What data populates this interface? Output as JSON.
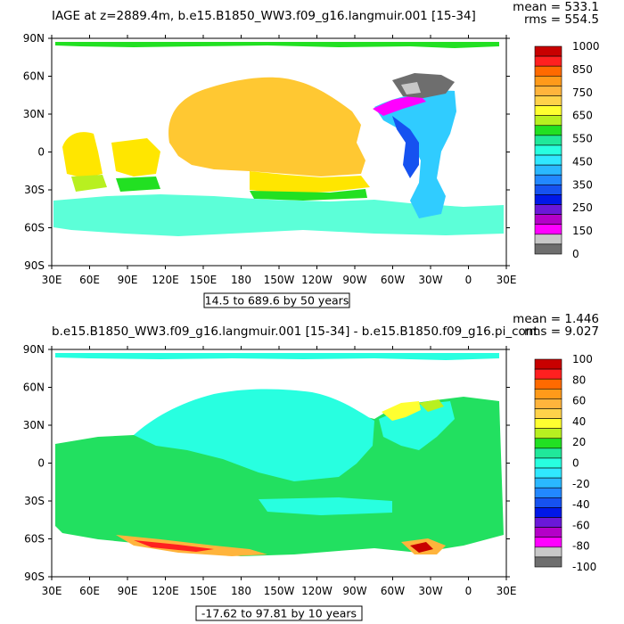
{
  "chart_data": [
    {
      "type": "heatmap",
      "title": "IAGE at z=2889.4m, b.e15.B1850_WW3.f09_g16.langmuir.001 [15-34]",
      "stats": {
        "mean": "mean = 533.1",
        "rms": "rms = 554.5"
      },
      "footer": "14.5 to 689.6 by 50 years",
      "x_ticks": [
        "30E",
        "60E",
        "90E",
        "120E",
        "150E",
        "180",
        "150W",
        "120W",
        "90W",
        "60W",
        "30W",
        "0",
        "30E"
      ],
      "y_ticks": [
        "90N",
        "60N",
        "30N",
        "0",
        "30S",
        "60S",
        "90S"
      ],
      "colorbar": {
        "labels": [
          "1000",
          "850",
          "750",
          "650",
          "550",
          "450",
          "350",
          "250",
          "150",
          "0"
        ],
        "colors": [
          "#c80000",
          "#ff2020",
          "#ff6a00",
          "#ff9a1a",
          "#ffb43c",
          "#ffd24a",
          "#ffff30",
          "#b8f020",
          "#22e022",
          "#20e89a",
          "#28ffe0",
          "#30e8ff",
          "#2ab8ff",
          "#2288ff",
          "#1652f0",
          "#0018e8",
          "#6a18d8",
          "#b400c8",
          "#ff00ff",
          "#c8c8c8",
          "#6e6e6e"
        ]
      },
      "regions": [
        {
          "name": "pacific",
          "color": "#ffc832"
        },
        {
          "name": "indian",
          "color": "#ffe600"
        },
        {
          "name": "southern",
          "color": "#5cffd8"
        },
        {
          "name": "atlantic",
          "color": "#30ccff"
        },
        {
          "name": "arctic",
          "color": "#22e022"
        }
      ]
    },
    {
      "type": "heatmap",
      "title": "b.e15.B1850_WW3.f09_g16.langmuir.001 [15-34] - b.e15.B1850.f09_g16.pi_cont",
      "stats": {
        "mean": "mean = 1.446",
        "rms": "rms = 9.027"
      },
      "footer": "-17.62 to 97.81 by 10 years",
      "x_ticks": [
        "30E",
        "60E",
        "90E",
        "120E",
        "150E",
        "180",
        "150W",
        "120W",
        "90W",
        "60W",
        "30W",
        "0",
        "30E"
      ],
      "y_ticks": [
        "90N",
        "60N",
        "30N",
        "0",
        "30S",
        "60S",
        "90S"
      ],
      "colorbar": {
        "labels": [
          "100",
          "80",
          "60",
          "40",
          "20",
          "0",
          "-20",
          "-40",
          "-60",
          "-80",
          "-100"
        ],
        "colors": [
          "#c80000",
          "#ff2020",
          "#ff6a00",
          "#ff9a1a",
          "#ffb43c",
          "#ffd24a",
          "#ffff30",
          "#b8f020",
          "#22e022",
          "#20e89a",
          "#28ffe0",
          "#30e8ff",
          "#2ab8ff",
          "#2288ff",
          "#1652f0",
          "#0018e8",
          "#6a18d8",
          "#b400c8",
          "#ff00ff",
          "#c8c8c8",
          "#6e6e6e"
        ]
      },
      "regions": [
        {
          "name": "near-zero-ocean",
          "color": "#22e060"
        },
        {
          "name": "north-pacific",
          "color": "#28ffe0"
        },
        {
          "name": "southern-anomaly",
          "color": "#ffb43c"
        },
        {
          "name": "labrador",
          "color": "#ffff30"
        }
      ]
    }
  ]
}
